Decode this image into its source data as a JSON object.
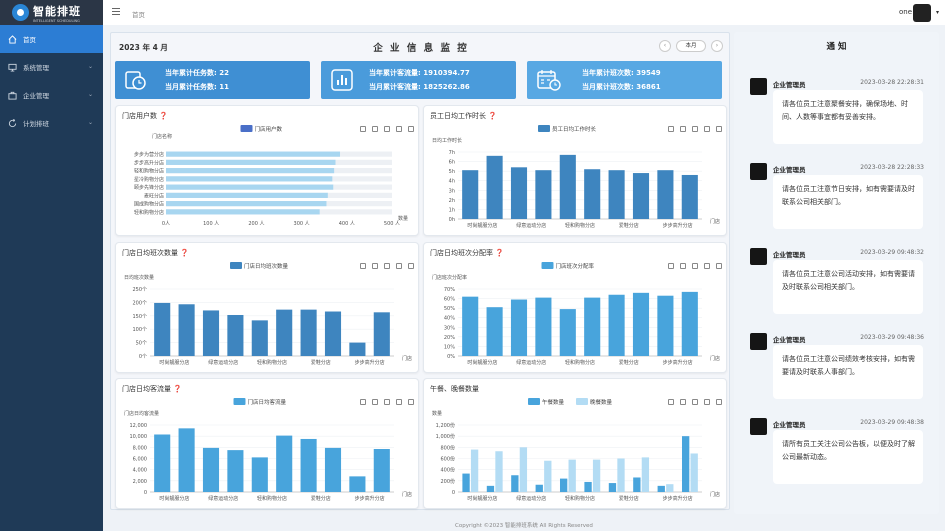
{
  "logo": {
    "name": "智能排班",
    "subtitle": "INTELLIGENT SCHEDULING"
  },
  "topbar": {
    "breadcrumb": "首页",
    "user": "one"
  },
  "menu": [
    {
      "label": "首页",
      "icon": "home-icon",
      "active": true
    },
    {
      "label": "系统管理",
      "icon": "monitor-icon"
    },
    {
      "label": "企业管理",
      "icon": "briefcase-icon"
    },
    {
      "label": "计划排班",
      "icon": "refresh-icon"
    }
  ],
  "header": {
    "date": "2023 年 4 月",
    "title": "企 业 信 息 监 控",
    "this_month": "本月",
    "prev": "‹",
    "next": "›"
  },
  "stats": [
    {
      "line1": "当年累计任务数: 22",
      "line2": "当月累计任务数: 11",
      "icon": "clock-task-icon",
      "color": "#3f8fd3"
    },
    {
      "line1": "当年累计客流量: 1910394.77",
      "line2": "当月累计客流量: 1825262.86",
      "icon": "bar-chart-icon",
      "color": "#4a9bdb"
    },
    {
      "line1": "当年累计班次数: 39549",
      "line2": "当月累计班次数: 36861",
      "icon": "calendar-icon",
      "color": "#58a8e3"
    }
  ],
  "chart_data": [
    {
      "type": "bar",
      "orientation": "horizontal",
      "title": "门店用户数",
      "legend": [
        "门店用户数"
      ],
      "ylabel": "门店名称",
      "xlabel": "数量",
      "categories": [
        "轻和购物分店",
        "国成购物分店",
        "麦旺分店",
        "颐步先锋分店",
        "星冷购物分店",
        "轻和购物分店",
        "步步高升分店",
        "步步为营分店"
      ],
      "values": [
        340,
        355,
        358,
        370,
        368,
        372,
        375,
        385
      ],
      "background": [
        500,
        500,
        500,
        500,
        500,
        500,
        500,
        500
      ],
      "xticks": [
        "0人",
        "100 人",
        "200 人",
        "300 人",
        "400 人",
        "500 人"
      ],
      "xlim": [
        0,
        500
      ]
    },
    {
      "type": "bar",
      "title": "员工日均工作时长",
      "legend": [
        "员工日均工作时长"
      ],
      "ylabel": "日均工作时长",
      "xlabel": "门店",
      "yticks": [
        "0h",
        "1h",
        "2h",
        "3h",
        "4h",
        "5h",
        "6h",
        "7h"
      ],
      "ylim": [
        0,
        7
      ],
      "xticklabels": [
        "时尚靓服分店",
        "绿意运动分店",
        "轻和购物分店",
        "爱鞋分店",
        "步步高升分店"
      ],
      "values": [
        5.1,
        6.6,
        5.4,
        5.1,
        6.7,
        5.2,
        5.1,
        4.8,
        5.1,
        4.6
      ]
    },
    {
      "type": "bar",
      "title": "门店日均班次数量",
      "legend": [
        "门店日均班次数量"
      ],
      "ylabel": "日均班次数量",
      "xlabel": "门店",
      "yticks": [
        "0个",
        "50个",
        "100个",
        "150个",
        "200个",
        "250个"
      ],
      "ylim": [
        0,
        250
      ],
      "xticklabels": [
        "时尚靓服分店",
        "绿意运动分店",
        "轻和购物分店",
        "爱鞋分店",
        "步步高升分店"
      ],
      "values": [
        198,
        193,
        170,
        153,
        133,
        173,
        173,
        166,
        50,
        163
      ]
    },
    {
      "type": "bar",
      "title": "门店日均班次分配率",
      "legend": [
        "门店班次分配率"
      ],
      "ylabel": "门店班次分配率",
      "xlabel": "门店",
      "yticks": [
        "0%",
        "10%",
        "20%",
        "30%",
        "40%",
        "50%",
        "60%",
        "70%"
      ],
      "ylim": [
        0,
        70
      ],
      "xticklabels": [
        "时尚靓服分店",
        "绿意运动分店",
        "轻和购物分店",
        "爱鞋分店",
        "步步高升分店"
      ],
      "values": [
        62,
        51,
        59,
        61,
        49,
        61,
        64,
        66,
        63,
        67
      ]
    },
    {
      "type": "bar",
      "title": "门店日均客流量",
      "legend": [
        "门店日均客流量"
      ],
      "ylabel": "门店日均客流量",
      "xlabel": "门店",
      "yticks": [
        "0",
        "2,000",
        "4,000",
        "6,000",
        "8,000",
        "10,000",
        "12,000"
      ],
      "ylim": [
        0,
        12000
      ],
      "xticklabels": [
        "时尚靓服分店",
        "绿意运动分店",
        "轻和购物分店",
        "爱鞋分店",
        "步步高升分店"
      ],
      "values": [
        10300,
        11400,
        7900,
        7500,
        6200,
        10100,
        9500,
        7900,
        2800,
        7700
      ]
    },
    {
      "type": "bar",
      "title": "午餐、晚餐数量",
      "legend": [
        "午餐数量",
        "晚餐数量"
      ],
      "ylabel": "数量",
      "xlabel": "门店",
      "yticks": [
        "0",
        "200份",
        "400份",
        "600份",
        "800份",
        "1,000份",
        "1,200份"
      ],
      "ylim": [
        0,
        1200
      ],
      "xticklabels": [
        "时尚靓服分店",
        "绿意运动分店",
        "轻和购物分店",
        "爱鞋分店",
        "步步高升分店"
      ],
      "series": [
        {
          "name": "午餐数量",
          "values": [
            330,
            110,
            300,
            130,
            240,
            180,
            160,
            260,
            110,
            1000
          ]
        },
        {
          "name": "晚餐数量",
          "values": [
            760,
            730,
            800,
            560,
            580,
            580,
            600,
            620,
            140,
            690
          ]
        }
      ]
    }
  ],
  "notice": {
    "title": "通 知",
    "items": [
      {
        "sender": "企业管理员",
        "time": "2023-03-28 22:28:31",
        "text": "请各位员工注意聚餐安排，确保场地、时间、人数等事宜都有妥善安排。"
      },
      {
        "sender": "企业管理员",
        "time": "2023-03-28 22:28:33",
        "text": "请各位员工注意节日安排，如有需要请及时联系公司相关部门。"
      },
      {
        "sender": "企业管理员",
        "time": "2023-03-29 09:48:32",
        "text": "请各位员工注意公司活动安排，如有需要请及时联系公司相关部门。"
      },
      {
        "sender": "企业管理员",
        "time": "2023-03-29 09:48:36",
        "text": "请各位员工注意公司绩效考核安排，如有需要请及时联系人事部门。"
      },
      {
        "sender": "企业管理员",
        "time": "2023-03-29 09:48:38",
        "text": "请所有员工关注公司公告板，以便及时了解公司最新动态。"
      }
    ]
  },
  "footer": "Copyright ©2023 智能排班系统 All Rights Reserved"
}
